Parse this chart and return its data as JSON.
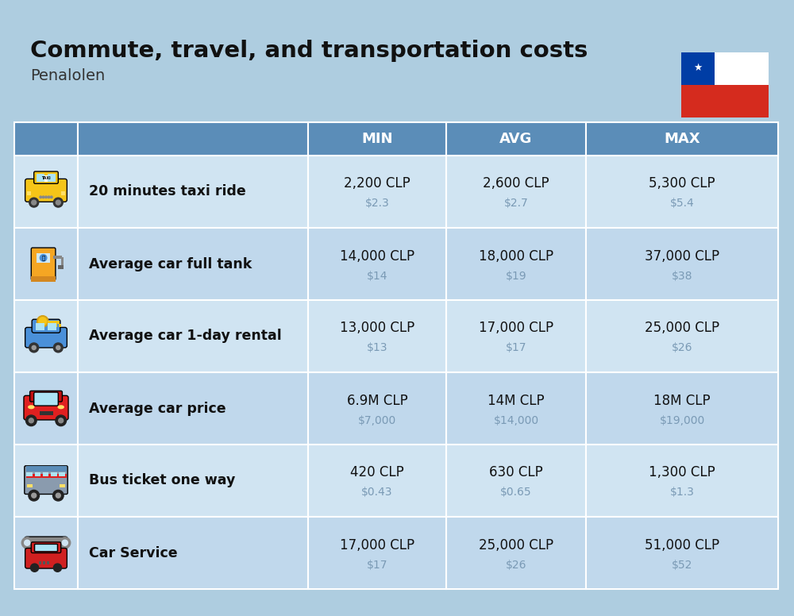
{
  "title": "Commute, travel, and transportation costs",
  "subtitle": "Penalolen",
  "bg_color": "#AECDE0",
  "header_bg": "#5B8DB8",
  "table_bg_even": "#D0E4F2",
  "table_bg_odd": "#C0D8EC",
  "row_label_color": "#111111",
  "clp_color": "#111111",
  "usd_color": "#7A9AB5",
  "white": "#FFFFFF",
  "col_headers": [
    "MIN",
    "AVG",
    "MAX"
  ],
  "rows": [
    {
      "label": "20 minutes taxi ride",
      "min_clp": "2,200 CLP",
      "min_usd": "$2.3",
      "avg_clp": "2,600 CLP",
      "avg_usd": "$2.7",
      "max_clp": "5,300 CLP",
      "max_usd": "$5.4"
    },
    {
      "label": "Average car full tank",
      "min_clp": "14,000 CLP",
      "min_usd": "$14",
      "avg_clp": "18,000 CLP",
      "avg_usd": "$19",
      "max_clp": "37,000 CLP",
      "max_usd": "$38"
    },
    {
      "label": "Average car 1-day rental",
      "min_clp": "13,000 CLP",
      "min_usd": "$13",
      "avg_clp": "17,000 CLP",
      "avg_usd": "$17",
      "max_clp": "25,000 CLP",
      "max_usd": "$26"
    },
    {
      "label": "Average car price",
      "min_clp": "6.9M CLP",
      "min_usd": "$7,000",
      "avg_clp": "14M CLP",
      "avg_usd": "$14,000",
      "max_clp": "18M CLP",
      "max_usd": "$19,000"
    },
    {
      "label": "Bus ticket one way",
      "min_clp": "420 CLP",
      "min_usd": "$0.43",
      "avg_clp": "630 CLP",
      "avg_usd": "$0.65",
      "max_clp": "1,300 CLP",
      "max_usd": "$1.3"
    },
    {
      "label": "Car Service",
      "min_clp": "17,000 CLP",
      "min_usd": "$17",
      "avg_clp": "25,000 CLP",
      "avg_usd": "$26",
      "max_clp": "51,000 CLP",
      "max_usd": "$52"
    }
  ],
  "fig_width": 10.0,
  "fig_height": 7.76,
  "dpi": 100
}
